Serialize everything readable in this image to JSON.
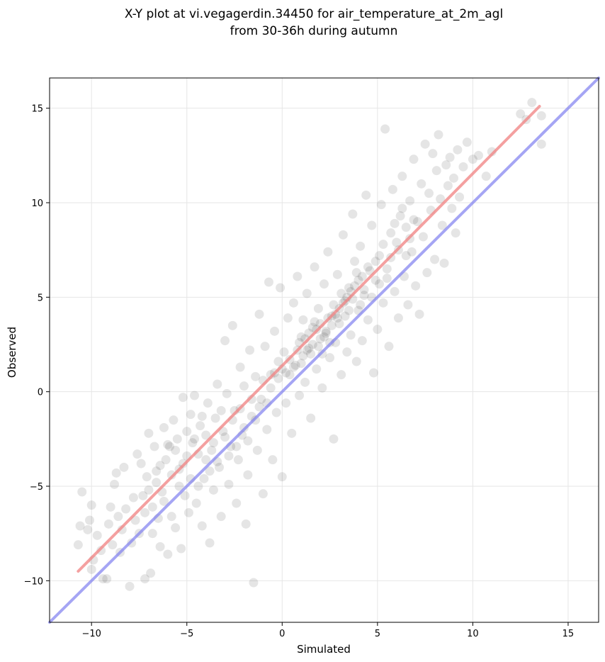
{
  "chart_data": {
    "type": "scatter",
    "title": "X-Y plot at vi.vegagerdin.34450 for air_temperature_at_2m_agl",
    "subtitle": "from 30-36h during autumn",
    "xlabel": "Simulated",
    "ylabel": "Observed",
    "xlim": [
      -12.2,
      16.6
    ],
    "ylim": [
      -12.2,
      16.6
    ],
    "xticks": [
      -10,
      -5,
      0,
      5,
      10,
      15
    ],
    "yticks": [
      -10,
      -5,
      0,
      5,
      10,
      15
    ],
    "xtick_labels": [
      "−10",
      "−5",
      "0",
      "5",
      "10",
      "15"
    ],
    "ytick_labels": [
      "−10",
      "−5",
      "0",
      "5",
      "10",
      "15"
    ],
    "grid": true,
    "point_color": "#000000",
    "fit_line_color": "#f08080",
    "identity_line_color": "#7f7fef",
    "fit_line": {
      "x": [
        -10.7,
        13.5
      ],
      "y": [
        -9.5,
        15.1
      ]
    },
    "identity_line": {
      "x": [
        -12.2,
        16.6
      ],
      "y": [
        -12.2,
        16.6
      ]
    },
    "points": [
      [
        -10.7,
        -8.1
      ],
      [
        -10.6,
        -7.1
      ],
      [
        -10.5,
        -5.3
      ],
      [
        -10.2,
        -7.3
      ],
      [
        -10.1,
        -6.8
      ],
      [
        -10.0,
        -6.0
      ],
      [
        -10.0,
        -9.4
      ],
      [
        -9.9,
        -8.9
      ],
      [
        -9.7,
        -7.6
      ],
      [
        -9.5,
        -8.4
      ],
      [
        -9.4,
        -9.9
      ],
      [
        -9.2,
        -9.9
      ],
      [
        -9.1,
        -7.0
      ],
      [
        -9.0,
        -6.1
      ],
      [
        -8.9,
        -8.1
      ],
      [
        -8.8,
        -4.9
      ],
      [
        -8.7,
        -4.3
      ],
      [
        -8.6,
        -6.6
      ],
      [
        -8.5,
        -8.5
      ],
      [
        -8.4,
        -7.3
      ],
      [
        -8.3,
        -4.0
      ],
      [
        -8.2,
        -6.2
      ],
      [
        -8.0,
        -10.3
      ],
      [
        -7.9,
        -8.0
      ],
      [
        -7.8,
        -5.6
      ],
      [
        -7.7,
        -6.8
      ],
      [
        -7.6,
        -3.3
      ],
      [
        -7.5,
        -7.5
      ],
      [
        -7.3,
        -5.5
      ],
      [
        -7.2,
        -9.9
      ],
      [
        -7.1,
        -4.5
      ],
      [
        -7.0,
        -2.2
      ],
      [
        -6.9,
        -9.6
      ],
      [
        -6.8,
        -7.5
      ],
      [
        -6.7,
        -2.9
      ],
      [
        -6.6,
        -4.2
      ],
      [
        -6.5,
        -6.7
      ],
      [
        -6.4,
        -8.2
      ],
      [
        -6.3,
        -5.3
      ],
      [
        -6.2,
        -1.9
      ],
      [
        -6.1,
        -3.6
      ],
      [
        -6.0,
        -8.6
      ],
      [
        -5.9,
        -2.9
      ],
      [
        -5.8,
        -6.6
      ],
      [
        -5.7,
        -1.5
      ],
      [
        -5.6,
        -7.2
      ],
      [
        -5.5,
        -2.5
      ],
      [
        -5.4,
        -4.1
      ],
      [
        -5.3,
        -8.3
      ],
      [
        -5.2,
        -0.3
      ],
      [
        -5.1,
        -5.5
      ],
      [
        -5.0,
        -3.4
      ],
      [
        -4.9,
        -6.4
      ],
      [
        -4.8,
        -1.2
      ],
      [
        -4.7,
        -2.7
      ],
      [
        -4.6,
        -0.2
      ],
      [
        -4.5,
        -5.9
      ],
      [
        -4.4,
        -3.3
      ],
      [
        -4.3,
        -1.8
      ],
      [
        -4.2,
        -7.1
      ],
      [
        -4.1,
        -4.6
      ],
      [
        -4.0,
        -2.3
      ],
      [
        -3.9,
        -0.6
      ],
      [
        -3.8,
        -8.0
      ],
      [
        -3.7,
        -3.1
      ],
      [
        -3.6,
        -5.2
      ],
      [
        -3.5,
        -1.4
      ],
      [
        -3.4,
        0.4
      ],
      [
        -3.3,
        -4.0
      ],
      [
        -3.2,
        -6.6
      ],
      [
        -3.1,
        -2.1
      ],
      [
        -3.0,
        2.7
      ],
      [
        -2.9,
        -0.1
      ],
      [
        -2.8,
        -4.9
      ],
      [
        -2.7,
        -2.9
      ],
      [
        -2.6,
        3.5
      ],
      [
        -2.5,
        -1.0
      ],
      [
        -2.4,
        -5.9
      ],
      [
        -2.3,
        -3.6
      ],
      [
        -2.2,
        1.3
      ],
      [
        -2.1,
        -2.3
      ],
      [
        -2.0,
        0.3
      ],
      [
        -1.9,
        -7.0
      ],
      [
        -1.8,
        -4.4
      ],
      [
        -1.7,
        2.2
      ],
      [
        -1.6,
        -1.3
      ],
      [
        -1.5,
        -10.1
      ],
      [
        -1.4,
        0.8
      ],
      [
        -1.3,
        -3.1
      ],
      [
        -1.2,
        4.1
      ],
      [
        -1.1,
        -0.4
      ],
      [
        -1.0,
        -5.4
      ],
      [
        -0.9,
        2.4
      ],
      [
        -0.8,
        -2.0
      ],
      [
        -0.7,
        5.8
      ],
      [
        -0.6,
        0.9
      ],
      [
        -0.5,
        -3.6
      ],
      [
        -0.4,
        3.2
      ],
      [
        -0.3,
        -1.1
      ],
      [
        -0.2,
        1.6
      ],
      [
        -0.1,
        5.5
      ],
      [
        0.0,
        -4.5
      ],
      [
        0.1,
        2.1
      ],
      [
        0.2,
        -0.6
      ],
      [
        0.3,
        3.9
      ],
      [
        0.4,
        0.9
      ],
      [
        0.5,
        -2.2
      ],
      [
        0.6,
        4.7
      ],
      [
        0.7,
        1.4
      ],
      [
        0.8,
        6.1
      ],
      [
        0.9,
        -0.2
      ],
      [
        1.0,
        2.9
      ],
      [
        1.1,
        3.8
      ],
      [
        1.2,
        0.5
      ],
      [
        1.3,
        5.2
      ],
      [
        1.4,
        2.3
      ],
      [
        1.5,
        -1.4
      ],
      [
        1.6,
        3.4
      ],
      [
        1.7,
        6.6
      ],
      [
        1.8,
        1.2
      ],
      [
        1.9,
        4.4
      ],
      [
        2.0,
        2.8
      ],
      [
        2.1,
        0.2
      ],
      [
        2.2,
        5.7
      ],
      [
        2.3,
        3.1
      ],
      [
        2.4,
        7.4
      ],
      [
        2.5,
        1.8
      ],
      [
        2.6,
        4.0
      ],
      [
        2.7,
        -2.5
      ],
      [
        2.8,
        2.6
      ],
      [
        2.9,
        6.2
      ],
      [
        3.0,
        3.6
      ],
      [
        3.1,
        0.9
      ],
      [
        3.2,
        8.3
      ],
      [
        3.3,
        4.8
      ],
      [
        3.4,
        2.1
      ],
      [
        3.5,
        5.5
      ],
      [
        3.6,
        3.0
      ],
      [
        3.7,
        9.4
      ],
      [
        3.8,
        6.9
      ],
      [
        3.9,
        1.6
      ],
      [
        4.0,
        4.3
      ],
      [
        4.1,
        7.7
      ],
      [
        4.2,
        2.7
      ],
      [
        4.3,
        5.1
      ],
      [
        4.4,
        10.4
      ],
      [
        4.5,
        3.8
      ],
      [
        4.6,
        6.4
      ],
      [
        4.7,
        8.8
      ],
      [
        4.8,
        1.0
      ],
      [
        4.9,
        5.9
      ],
      [
        5.0,
        3.3
      ],
      [
        5.1,
        7.2
      ],
      [
        5.2,
        9.9
      ],
      [
        5.3,
        4.7
      ],
      [
        5.4,
        13.9
      ],
      [
        5.5,
        6.5
      ],
      [
        5.6,
        2.4
      ],
      [
        5.7,
        8.4
      ],
      [
        5.8,
        10.7
      ],
      [
        5.9,
        5.3
      ],
      [
        6.0,
        7.9
      ],
      [
        6.1,
        3.9
      ],
      [
        6.2,
        9.3
      ],
      [
        6.3,
        11.4
      ],
      [
        6.4,
        6.1
      ],
      [
        6.5,
        8.7
      ],
      [
        6.6,
        4.6
      ],
      [
        6.7,
        10.1
      ],
      [
        6.8,
        7.4
      ],
      [
        6.9,
        12.3
      ],
      [
        7.0,
        5.6
      ],
      [
        7.1,
        9.0
      ],
      [
        7.2,
        4.1
      ],
      [
        7.3,
        11.0
      ],
      [
        7.4,
        8.2
      ],
      [
        7.5,
        13.1
      ],
      [
        7.6,
        6.3
      ],
      [
        7.7,
        10.5
      ],
      [
        7.8,
        9.6
      ],
      [
        7.9,
        12.6
      ],
      [
        8.0,
        7.0
      ],
      [
        8.1,
        11.7
      ],
      [
        8.2,
        13.6
      ],
      [
        8.3,
        10.2
      ],
      [
        8.4,
        8.8
      ],
      [
        8.5,
        6.8
      ],
      [
        8.6,
        12.0
      ],
      [
        8.7,
        10.9
      ],
      [
        8.8,
        12.4
      ],
      [
        8.9,
        9.7
      ],
      [
        9.0,
        11.3
      ],
      [
        9.1,
        8.4
      ],
      [
        9.2,
        12.8
      ],
      [
        9.3,
        10.3
      ],
      [
        9.5,
        11.9
      ],
      [
        9.7,
        13.2
      ],
      [
        10.0,
        12.3
      ],
      [
        10.3,
        12.5
      ],
      [
        10.7,
        11.4
      ],
      [
        11.0,
        12.7
      ],
      [
        12.5,
        14.7
      ],
      [
        12.8,
        14.4
      ],
      [
        13.1,
        15.3
      ],
      [
        13.6,
        14.6
      ],
      [
        13.6,
        13.1
      ],
      [
        0.4,
        1.7
      ],
      [
        0.8,
        2.2
      ],
      [
        1.0,
        1.5
      ],
      [
        1.2,
        2.8
      ],
      [
        1.4,
        3.1
      ],
      [
        1.6,
        2.5
      ],
      [
        1.8,
        3.3
      ],
      [
        2.0,
        3.6
      ],
      [
        2.2,
        2.9
      ],
      [
        2.4,
        3.9
      ],
      [
        1.5,
        2.0
      ],
      [
        1.9,
        2.4
      ],
      [
        2.3,
        3.2
      ],
      [
        2.6,
        3.5
      ],
      [
        2.8,
        4.1
      ],
      [
        3.0,
        4.4
      ],
      [
        3.2,
        4.7
      ],
      [
        3.4,
        5.0
      ],
      [
        3.6,
        5.3
      ],
      [
        3.8,
        5.6
      ],
      [
        4.0,
        5.9
      ],
      [
        4.2,
        6.1
      ],
      [
        0.9,
        2.6
      ],
      [
        1.1,
        1.9
      ],
      [
        1.3,
        2.2
      ],
      [
        1.7,
        3.7
      ],
      [
        2.1,
        2.0
      ],
      [
        2.5,
        2.6
      ],
      [
        2.7,
        4.6
      ],
      [
        2.9,
        3.9
      ],
      [
        3.1,
        5.2
      ],
      [
        3.3,
        4.0
      ],
      [
        3.5,
        4.3
      ],
      [
        3.7,
        4.9
      ],
      [
        3.9,
        6.3
      ],
      [
        4.1,
        4.6
      ],
      [
        4.3,
        5.4
      ],
      [
        4.5,
        6.6
      ],
      [
        4.7,
        5.0
      ],
      [
        4.9,
        6.9
      ],
      [
        5.1,
        5.7
      ],
      [
        5.3,
        7.8
      ],
      [
        5.5,
        6.0
      ],
      [
        5.7,
        7.1
      ],
      [
        5.9,
        8.9
      ],
      [
        6.1,
        7.5
      ],
      [
        6.3,
        9.7
      ],
      [
        6.5,
        7.2
      ],
      [
        6.7,
        8.1
      ],
      [
        6.9,
        9.1
      ],
      [
        -0.2,
        0.7
      ],
      [
        0.0,
        1.2
      ],
      [
        0.2,
        1.0
      ],
      [
        0.6,
        1.3
      ],
      [
        -0.4,
        1.0
      ],
      [
        -0.6,
        0.2
      ],
      [
        -0.8,
        -0.6
      ],
      [
        -1.0,
        0.6
      ],
      [
        -1.2,
        -0.8
      ],
      [
        -1.4,
        -1.5
      ],
      [
        -1.6,
        -0.4
      ],
      [
        -1.8,
        -2.6
      ],
      [
        -2.0,
        -1.9
      ],
      [
        -2.2,
        -0.9
      ],
      [
        -2.4,
        -2.9
      ],
      [
        -2.6,
        -1.5
      ],
      [
        -2.8,
        -3.4
      ],
      [
        -3.0,
        -2.4
      ],
      [
        -3.2,
        -1.0
      ],
      [
        -3.4,
        -3.7
      ],
      [
        -3.6,
        -2.7
      ],
      [
        -3.8,
        -4.2
      ],
      [
        -4.0,
        -3.6
      ],
      [
        -4.2,
        -1.3
      ],
      [
        -4.4,
        -5.0
      ],
      [
        -4.6,
        -2.5
      ],
      [
        -4.8,
        -4.6
      ],
      [
        -5.0,
        -2.1
      ],
      [
        -5.2,
        -3.8
      ],
      [
        -5.4,
        -5.0
      ],
      [
        -5.6,
        -3.1
      ],
      [
        -5.8,
        -4.4
      ],
      [
        -6.0,
        -2.8
      ],
      [
        -6.2,
        -5.8
      ],
      [
        -6.4,
        -3.9
      ],
      [
        -6.6,
        -4.8
      ],
      [
        -6.8,
        -6.1
      ],
      [
        -7.0,
        -5.2
      ],
      [
        -7.2,
        -6.4
      ],
      [
        -7.4,
        -3.8
      ]
    ]
  }
}
